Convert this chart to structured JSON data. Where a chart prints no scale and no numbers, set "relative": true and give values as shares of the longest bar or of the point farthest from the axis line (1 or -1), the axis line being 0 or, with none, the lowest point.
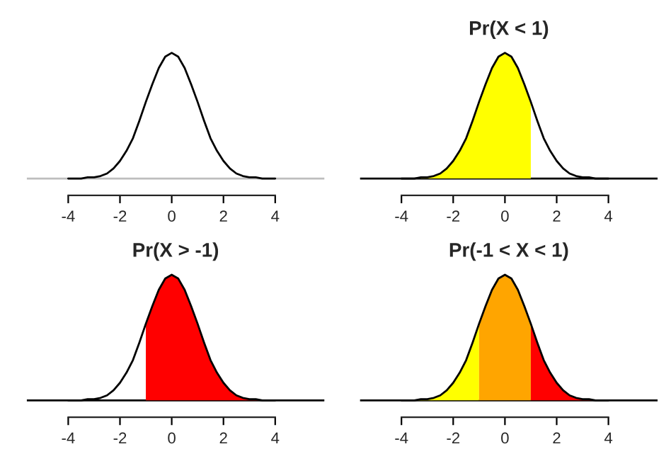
{
  "chart_data": [
    {
      "type": "line",
      "relative": true,
      "xlim": [
        -5.6,
        5.9
      ],
      "xticks": [
        -4,
        -2,
        0,
        2,
        4
      ],
      "tick_labels": "x",
      "grid": false,
      "legend": false,
      "ref_lines": [
        {
          "axis": "y",
          "value": 0,
          "color": "#bebebe"
        }
      ],
      "x": [
        -4,
        -3.75,
        -3.5,
        -3.25,
        -3,
        -2.75,
        -2.5,
        -2.25,
        -2,
        -1.75,
        -1.5,
        -1.25,
        -1,
        -0.75,
        -0.5,
        -0.25,
        0,
        0.25,
        0.5,
        0.75,
        1,
        1.25,
        1.5,
        1.75,
        2,
        2.25,
        2.5,
        2.75,
        3,
        3.25,
        3.5,
        3.75,
        4
      ],
      "series": [
        {
          "type": "line",
          "color": "#000000",
          "values": [
            0,
            0,
            0,
            0.01,
            0.01,
            0.02,
            0.04,
            0.08,
            0.14,
            0.22,
            0.32,
            0.46,
            0.61,
            0.75,
            0.88,
            0.97,
            1,
            0.97,
            0.88,
            0.75,
            0.61,
            0.46,
            0.32,
            0.22,
            0.14,
            0.08,
            0.04,
            0.02,
            0.01,
            0.01,
            0,
            0,
            0
          ]
        }
      ]
    },
    {
      "type": "line",
      "relative": true,
      "title": "Pr(X < 1)",
      "xlim": [
        -5.6,
        5.9
      ],
      "xticks": [
        -4,
        -2,
        0,
        2,
        4
      ],
      "tick_labels": "x",
      "grid": false,
      "legend": false,
      "ref_lines": [
        {
          "axis": "y",
          "value": 0,
          "color": "#000000"
        }
      ],
      "x": [
        -4,
        -3.75,
        -3.5,
        -3.25,
        -3,
        -2.75,
        -2.5,
        -2.25,
        -2,
        -1.75,
        -1.5,
        -1.25,
        -1,
        -0.75,
        -0.5,
        -0.25,
        0,
        0.25,
        0.5,
        0.75,
        1,
        1.25,
        1.5,
        1.75,
        2,
        2.25,
        2.5,
        2.75,
        3,
        3.25,
        3.5,
        3.75,
        4
      ],
      "series": [
        {
          "type": "area",
          "color": "#ffff00",
          "x": [
            -4,
            -3.75,
            -3.5,
            -3.25,
            -3,
            -2.75,
            -2.5,
            -2.25,
            -2,
            -1.75,
            -1.5,
            -1.25,
            -1,
            -0.75,
            -0.5,
            -0.25,
            0,
            0.25,
            0.5,
            0.75,
            1
          ],
          "values": [
            0,
            0,
            0,
            0.01,
            0.01,
            0.02,
            0.04,
            0.08,
            0.14,
            0.22,
            0.32,
            0.46,
            0.61,
            0.75,
            0.88,
            0.97,
            1,
            0.97,
            0.88,
            0.75,
            0.61
          ]
        },
        {
          "type": "line",
          "color": "#000000",
          "values": [
            0,
            0,
            0,
            0.01,
            0.01,
            0.02,
            0.04,
            0.08,
            0.14,
            0.22,
            0.32,
            0.46,
            0.61,
            0.75,
            0.88,
            0.97,
            1,
            0.97,
            0.88,
            0.75,
            0.61,
            0.46,
            0.32,
            0.22,
            0.14,
            0.08,
            0.04,
            0.02,
            0.01,
            0.01,
            0,
            0,
            0
          ]
        }
      ]
    },
    {
      "type": "line",
      "relative": true,
      "title": "Pr(X > -1)",
      "xlim": [
        -5.6,
        5.9
      ],
      "xticks": [
        -4,
        -2,
        0,
        2,
        4
      ],
      "tick_labels": "x",
      "grid": false,
      "legend": false,
      "ref_lines": [
        {
          "axis": "y",
          "value": 0,
          "color": "#000000"
        }
      ],
      "x": [
        -4,
        -3.75,
        -3.5,
        -3.25,
        -3,
        -2.75,
        -2.5,
        -2.25,
        -2,
        -1.75,
        -1.5,
        -1.25,
        -1,
        -0.75,
        -0.5,
        -0.25,
        0,
        0.25,
        0.5,
        0.75,
        1,
        1.25,
        1.5,
        1.75,
        2,
        2.25,
        2.5,
        2.75,
        3,
        3.25,
        3.5,
        3.75,
        4
      ],
      "series": [
        {
          "type": "area",
          "color": "#ff0000",
          "x": [
            -1,
            -0.75,
            -0.5,
            -0.25,
            0,
            0.25,
            0.5,
            0.75,
            1,
            1.25,
            1.5,
            1.75,
            2,
            2.25,
            2.5,
            2.75,
            3,
            3.25,
            3.5,
            3.75,
            4
          ],
          "values": [
            0.61,
            0.75,
            0.88,
            0.97,
            1,
            0.97,
            0.88,
            0.75,
            0.61,
            0.46,
            0.32,
            0.22,
            0.14,
            0.08,
            0.04,
            0.02,
            0.01,
            0.01,
            0,
            0,
            0
          ]
        },
        {
          "type": "line",
          "color": "#000000",
          "values": [
            0,
            0,
            0,
            0.01,
            0.01,
            0.02,
            0.04,
            0.08,
            0.14,
            0.22,
            0.32,
            0.46,
            0.61,
            0.75,
            0.88,
            0.97,
            1,
            0.97,
            0.88,
            0.75,
            0.61,
            0.46,
            0.32,
            0.22,
            0.14,
            0.08,
            0.04,
            0.02,
            0.01,
            0.01,
            0,
            0,
            0
          ]
        }
      ]
    },
    {
      "type": "line",
      "relative": true,
      "title": "Pr(-1 < X < 1)",
      "xlim": [
        -5.6,
        5.9
      ],
      "xticks": [
        -4,
        -2,
        0,
        2,
        4
      ],
      "tick_labels": "x",
      "grid": false,
      "legend": false,
      "ref_lines": [
        {
          "axis": "y",
          "value": 0,
          "color": "#000000"
        }
      ],
      "x": [
        -4,
        -3.75,
        -3.5,
        -3.25,
        -3,
        -2.75,
        -2.5,
        -2.25,
        -2,
        -1.75,
        -1.5,
        -1.25,
        -1,
        -0.75,
        -0.5,
        -0.25,
        0,
        0.25,
        0.5,
        0.75,
        1,
        1.25,
        1.5,
        1.75,
        2,
        2.25,
        2.5,
        2.75,
        3,
        3.25,
        3.5,
        3.75,
        4
      ],
      "series": [
        {
          "type": "area",
          "color": "#ffff00",
          "x": [
            -4,
            -3.75,
            -3.5,
            -3.25,
            -3,
            -2.75,
            -2.5,
            -2.25,
            -2,
            -1.75,
            -1.5,
            -1.25,
            -1
          ],
          "values": [
            0,
            0,
            0,
            0.01,
            0.01,
            0.02,
            0.04,
            0.08,
            0.14,
            0.22,
            0.32,
            0.46,
            0.61
          ]
        },
        {
          "type": "area",
          "color": "#ffa500",
          "x": [
            -1,
            -0.75,
            -0.5,
            -0.25,
            0,
            0.25,
            0.5,
            0.75,
            1
          ],
          "values": [
            0.61,
            0.75,
            0.88,
            0.97,
            1,
            0.97,
            0.88,
            0.75,
            0.61
          ]
        },
        {
          "type": "area",
          "color": "#ff0000",
          "x": [
            1,
            1.25,
            1.5,
            1.75,
            2,
            2.25,
            2.5,
            2.75,
            3,
            3.25,
            3.5,
            3.75,
            4
          ],
          "values": [
            0.61,
            0.46,
            0.32,
            0.22,
            0.14,
            0.08,
            0.04,
            0.02,
            0.01,
            0.01,
            0,
            0,
            0
          ]
        },
        {
          "type": "line",
          "color": "#000000",
          "values": [
            0,
            0,
            0,
            0.01,
            0.01,
            0.02,
            0.04,
            0.08,
            0.14,
            0.22,
            0.32,
            0.46,
            0.61,
            0.75,
            0.88,
            0.97,
            1,
            0.97,
            0.88,
            0.75,
            0.61,
            0.46,
            0.32,
            0.22,
            0.14,
            0.08,
            0.04,
            0.02,
            0.01,
            0.01,
            0,
            0,
            0
          ]
        }
      ]
    }
  ]
}
